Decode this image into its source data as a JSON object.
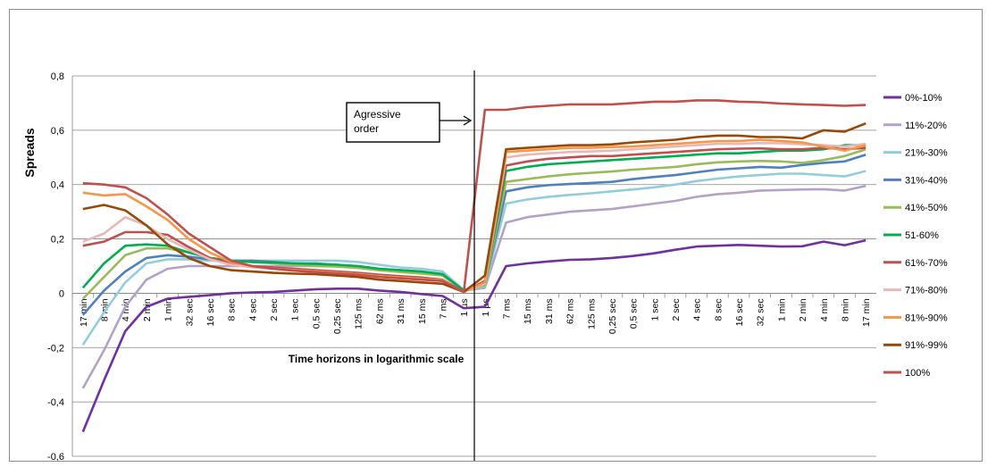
{
  "chart_data": {
    "type": "line",
    "title": "",
    "xlabel": "Time horizons  in  logarithmic scale",
    "ylabel": "Spreads",
    "ylim": [
      -0.6,
      0.8
    ],
    "yticks": [
      -0.6,
      -0.4,
      -0.2,
      0,
      0.2,
      0.4,
      0.6,
      0.8
    ],
    "ytick_labels": [
      "-0,6",
      "-0,4",
      "-0,2",
      "0",
      "0,2",
      "0,4",
      "0,6",
      "0,8"
    ],
    "grid": "horizontal",
    "legend_position": "right",
    "categories": [
      "17 min",
      "8 min",
      "4 min",
      "2 min",
      "1 min",
      "32 sec",
      "16 sec",
      "8 sec",
      "4 sec",
      "2 sec",
      "1 sec",
      "0,5 sec",
      "0,25 sec",
      "125 ms",
      "62 ms",
      "31 ms",
      "15 ms",
      "7 ms",
      "1 µs",
      "1 µs",
      "7 ms",
      "15 ms",
      "31 ms",
      "62 ms",
      "125 ms",
      "0,25 sec",
      "0,5 sec",
      "1 sec",
      "2 sec",
      "4 sec",
      "8 sec",
      "16 sec",
      "32 sec",
      "1 min",
      "2 min",
      "4 min",
      "8 min",
      "17 min"
    ],
    "annotation": {
      "text_lines": [
        "Agressive",
        "order"
      ],
      "category_index": 19
    },
    "series": [
      {
        "name": "0%-10%",
        "color": "#7030a0",
        "values": [
          -0.51,
          -0.32,
          -0.14,
          -0.05,
          -0.02,
          -0.013,
          -0.007,
          0.0,
          0.003,
          0.005,
          0.01,
          0.015,
          0.017,
          0.017,
          0.01,
          0.005,
          -0.003,
          -0.01,
          -0.055,
          -0.05,
          0.1,
          0.11,
          0.117,
          0.123,
          0.125,
          0.13,
          0.137,
          0.147,
          0.16,
          0.172,
          0.175,
          0.178,
          0.175,
          0.172,
          0.173,
          0.19,
          0.177,
          0.195
        ]
      },
      {
        "name": "11%-20%",
        "color": "#b3a2c7",
        "values": [
          -0.35,
          -0.21,
          -0.05,
          0.05,
          0.09,
          0.1,
          0.1,
          0.1,
          0.1,
          0.1,
          0.1,
          0.1,
          0.1,
          0.095,
          0.085,
          0.08,
          0.075,
          0.065,
          0.01,
          0.02,
          0.26,
          0.28,
          0.29,
          0.3,
          0.305,
          0.31,
          0.32,
          0.33,
          0.34,
          0.355,
          0.365,
          0.37,
          0.378,
          0.38,
          0.382,
          0.383,
          0.378,
          0.395
        ]
      },
      {
        "name": "21%-30%",
        "color": "#92cddc",
        "values": [
          -0.19,
          -0.07,
          0.04,
          0.11,
          0.125,
          0.125,
          0.12,
          0.12,
          0.12,
          0.12,
          0.12,
          0.12,
          0.12,
          0.115,
          0.105,
          0.095,
          0.09,
          0.08,
          0.012,
          0.025,
          0.33,
          0.345,
          0.355,
          0.362,
          0.368,
          0.375,
          0.382,
          0.39,
          0.4,
          0.413,
          0.422,
          0.43,
          0.435,
          0.44,
          0.44,
          0.435,
          0.43,
          0.45
        ]
      },
      {
        "name": "31%-40%",
        "color": "#4f81bd",
        "values": [
          -0.08,
          0.01,
          0.08,
          0.13,
          0.14,
          0.135,
          0.125,
          0.12,
          0.12,
          0.115,
          0.11,
          0.11,
          0.105,
          0.1,
          0.09,
          0.085,
          0.08,
          0.07,
          0.01,
          0.03,
          0.375,
          0.39,
          0.398,
          0.402,
          0.406,
          0.41,
          0.42,
          0.428,
          0.435,
          0.445,
          0.455,
          0.46,
          0.465,
          0.462,
          0.472,
          0.48,
          0.485,
          0.51
        ]
      },
      {
        "name": "41%-50%",
        "color": "#9bbb59",
        "values": [
          -0.02,
          0.06,
          0.14,
          0.165,
          0.165,
          0.15,
          0.13,
          0.12,
          0.115,
          0.11,
          0.105,
          0.1,
          0.098,
          0.093,
          0.085,
          0.078,
          0.072,
          0.065,
          0.01,
          0.03,
          0.41,
          0.42,
          0.43,
          0.438,
          0.443,
          0.448,
          0.455,
          0.46,
          0.465,
          0.475,
          0.482,
          0.485,
          0.487,
          0.485,
          0.48,
          0.49,
          0.505,
          0.53
        ]
      },
      {
        "name": "51-60%",
        "color": "#00b050",
        "values": [
          0.02,
          0.11,
          0.175,
          0.18,
          0.175,
          0.15,
          0.13,
          0.12,
          0.115,
          0.113,
          0.11,
          0.108,
          0.105,
          0.1,
          0.09,
          0.085,
          0.08,
          0.07,
          0.01,
          0.035,
          0.45,
          0.465,
          0.475,
          0.48,
          0.485,
          0.49,
          0.495,
          0.5,
          0.505,
          0.51,
          0.515,
          0.515,
          0.52,
          0.525,
          0.525,
          0.53,
          0.545,
          0.545
        ]
      },
      {
        "name": "61%-70%",
        "color": "#c0504d",
        "values": [
          0.175,
          0.19,
          0.225,
          0.225,
          0.215,
          0.17,
          0.13,
          0.11,
          0.1,
          0.095,
          0.09,
          0.085,
          0.08,
          0.075,
          0.068,
          0.063,
          0.058,
          0.05,
          0.005,
          0.045,
          0.47,
          0.485,
          0.495,
          0.5,
          0.505,
          0.505,
          0.51,
          0.515,
          0.52,
          0.525,
          0.53,
          0.532,
          0.533,
          0.53,
          0.53,
          0.535,
          0.53,
          0.535
        ]
      },
      {
        "name": "71%-80%",
        "color": "#e6b9b8",
        "values": [
          0.19,
          0.22,
          0.28,
          0.25,
          0.2,
          0.16,
          0.125,
          0.105,
          0.095,
          0.09,
          0.085,
          0.08,
          0.075,
          0.07,
          0.063,
          0.058,
          0.052,
          0.045,
          0.005,
          0.035,
          0.5,
          0.51,
          0.515,
          0.52,
          0.522,
          0.525,
          0.53,
          0.535,
          0.54,
          0.545,
          0.55,
          0.55,
          0.553,
          0.552,
          0.548,
          0.545,
          0.54,
          0.55
        ]
      },
      {
        "name": "81%-90%",
        "color": "#f79646",
        "values": [
          0.37,
          0.36,
          0.365,
          0.32,
          0.27,
          0.2,
          0.15,
          0.115,
          0.1,
          0.09,
          0.085,
          0.08,
          0.075,
          0.07,
          0.063,
          0.058,
          0.053,
          0.048,
          0.005,
          0.04,
          0.52,
          0.525,
          0.53,
          0.535,
          0.535,
          0.538,
          0.54,
          0.545,
          0.55,
          0.555,
          0.56,
          0.56,
          0.565,
          0.56,
          0.555,
          0.54,
          0.525,
          0.545
        ]
      },
      {
        "name": "91%-99%",
        "color": "#984807",
        "values": [
          0.31,
          0.325,
          0.305,
          0.25,
          0.18,
          0.13,
          0.1,
          0.085,
          0.08,
          0.075,
          0.072,
          0.07,
          0.065,
          0.06,
          0.05,
          0.045,
          0.04,
          0.035,
          0.005,
          0.065,
          0.53,
          0.535,
          0.54,
          0.545,
          0.545,
          0.548,
          0.555,
          0.56,
          0.565,
          0.575,
          0.58,
          0.58,
          0.575,
          0.575,
          0.57,
          0.6,
          0.595,
          0.625
        ]
      },
      {
        "name": "100%",
        "color": "#c0504d",
        "values": [
          0.405,
          0.4,
          0.39,
          0.35,
          0.29,
          0.22,
          0.17,
          0.12,
          0.1,
          0.09,
          0.083,
          0.078,
          0.073,
          0.068,
          0.06,
          0.055,
          0.05,
          0.045,
          0.005,
          0.675,
          0.675,
          0.685,
          0.69,
          0.695,
          0.695,
          0.695,
          0.7,
          0.705,
          0.705,
          0.71,
          0.71,
          0.705,
          0.703,
          0.698,
          0.695,
          0.693,
          0.69,
          0.693
        ]
      }
    ]
  }
}
